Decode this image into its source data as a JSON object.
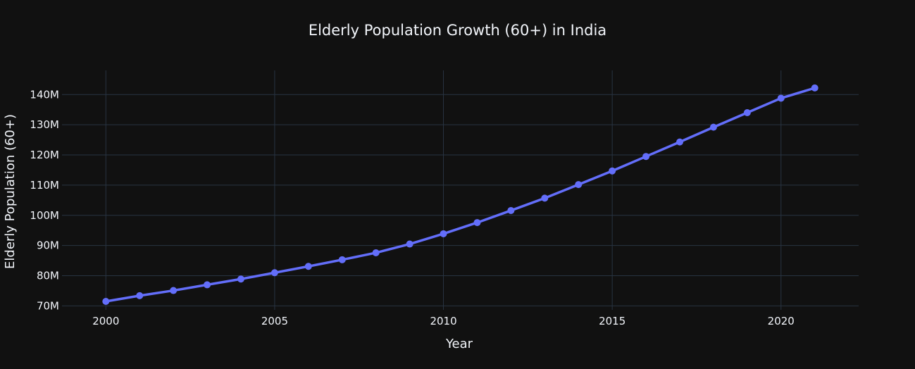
{
  "theme": {
    "background": "#111111",
    "grid": "#283442",
    "text": "#f2f5fa",
    "series": "#636efa"
  },
  "chart_data": {
    "type": "line",
    "title": "Elderly Population Growth (60+) in India",
    "xlabel": "Year",
    "ylabel": "Elderly Population (60+)",
    "xlim": [
      1998.7,
      2022.3
    ],
    "ylim": [
      68700000,
      148000000
    ],
    "grid": true,
    "legend": "none",
    "x_ticks": [
      2000,
      2005,
      2010,
      2015,
      2020
    ],
    "x_tick_labels": [
      "2000",
      "2005",
      "2010",
      "2015",
      "2020"
    ],
    "y_ticks": [
      70000000,
      80000000,
      90000000,
      100000000,
      110000000,
      120000000,
      130000000,
      140000000
    ],
    "y_tick_labels": [
      "70M",
      "80M",
      "90M",
      "100M",
      "110M",
      "120M",
      "130M",
      "140M"
    ],
    "series": [
      {
        "color": "#636efa",
        "markers": true,
        "x": [
          2000,
          2001,
          2002,
          2003,
          2004,
          2005,
          2006,
          2007,
          2008,
          2009,
          2010,
          2011,
          2012,
          2013,
          2014,
          2015,
          2016,
          2017,
          2018,
          2019,
          2020,
          2021
        ],
        "values": [
          71500000,
          73400000,
          75100000,
          77000000,
          78900000,
          81000000,
          83100000,
          85300000,
          87600000,
          90500000,
          93900000,
          97600000,
          101600000,
          105700000,
          110200000,
          114700000,
          119500000,
          124300000,
          129200000,
          134000000,
          138800000,
          142200000
        ]
      }
    ]
  }
}
